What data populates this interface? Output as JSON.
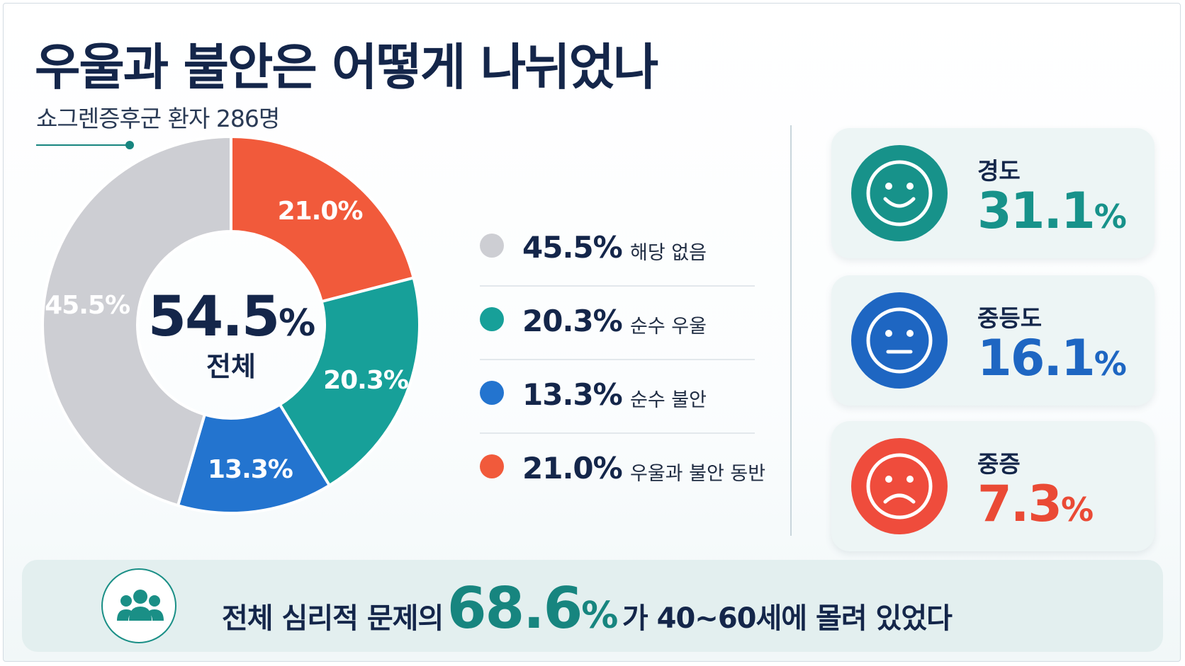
{
  "title": "우울과 불안은 어떻게 나뉘었나",
  "subtitle": "쇼그렌증후군 환자 286명",
  "colors": {
    "gray": "#cdced3",
    "teal": "#17a099",
    "blue": "#2374cf",
    "red": "#f15a3b",
    "navy": "#14264a",
    "mild_face": "#17928a",
    "moderate_face": "#1e66c2",
    "severe_face": "#ef4c3c",
    "mild_text": "#17928a",
    "moderate_text": "#1e66c2",
    "severe_text": "#ea4a35"
  },
  "chart_data": {
    "type": "pie",
    "center": {
      "value": "54.5%",
      "label": "전체"
    },
    "slices": [
      {
        "label": "우울과 불안 동반",
        "value": 21.0,
        "display": "21.0%",
        "color": "#f15a3b"
      },
      {
        "label": "순수 우울",
        "value": 20.3,
        "display": "20.3%",
        "color": "#17a099"
      },
      {
        "label": "순수 불안",
        "value": 13.3,
        "display": "13.3%",
        "color": "#2374cf"
      },
      {
        "label": "해당 없음",
        "value": 45.5,
        "display": "45.5%",
        "color": "#cdced3"
      }
    ]
  },
  "legend": [
    {
      "pct": "45.5%",
      "label": "해당 없음",
      "color": "#cdced3"
    },
    {
      "pct": "20.3%",
      "label": "순수 우울",
      "color": "#17a099"
    },
    {
      "pct": "13.3%",
      "label": "순수 불안",
      "color": "#2374cf"
    },
    {
      "pct": "21.0%",
      "label": "우울과 불안 동반",
      "color": "#f15a3b"
    }
  ],
  "severity": [
    {
      "label": "경도",
      "number": "31.1",
      "unit": "%",
      "face": "smile-face-icon"
    },
    {
      "label": "중등도",
      "number": "16.1",
      "unit": "%",
      "face": "neutral-face-icon"
    },
    {
      "label": "중증",
      "number": "7.3",
      "unit": "%",
      "face": "sad-face-icon"
    }
  ],
  "banner": {
    "icon": "people-group-icon",
    "prefix": "전체 심리적 문제의",
    "number": "68.6",
    "unit": "%",
    "suffix": "가 40~60세에 몰려 있었다"
  }
}
